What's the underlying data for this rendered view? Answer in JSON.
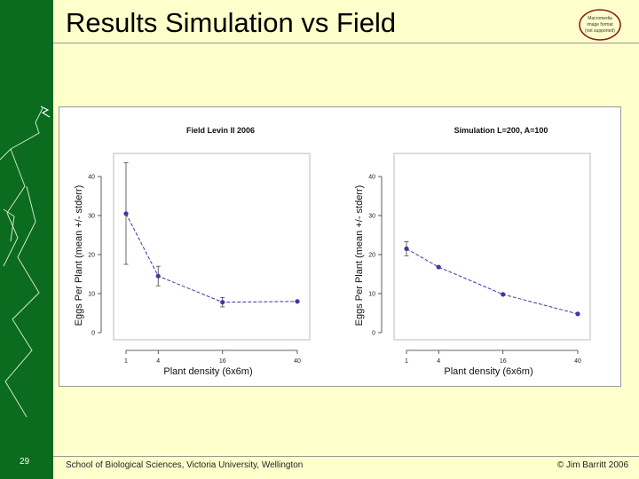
{
  "slide": {
    "title": "Results Simulation vs Field",
    "number": "29",
    "footer_left": "School of Biological Sciences, Victoria University, Wellington",
    "footer_right": "© Jim Barritt 2006",
    "logo_text": [
      "Macromedia",
      "image format",
      "(not supported)"
    ]
  },
  "colors": {
    "background": "#ffffcc",
    "sidebar": "#0b6b1e",
    "series": "#3a3aa0"
  },
  "chart_data": [
    {
      "type": "line",
      "title": "Field Levin II 2006",
      "xlabel": "Plant density (6x6m)",
      "ylabel": "Eggs Per Plant (mean +/- stderr)",
      "x": [
        1,
        4,
        16,
        40
      ],
      "x_ticks": [
        "1",
        "4",
        "16",
        "40"
      ],
      "y": [
        30.5,
        14.5,
        7.8,
        8.0
      ],
      "err": [
        13,
        2.5,
        1.2,
        0
      ],
      "y_ticks": [
        0,
        10,
        20,
        30,
        40
      ],
      "ylim": [
        0,
        45
      ],
      "xlim": [
        1,
        40
      ]
    },
    {
      "type": "line",
      "title": "Simulation L=200, A=100",
      "xlabel": "Plant density (6x6m)",
      "ylabel": "Eggs Per Plant (mean +/- stderr)",
      "x": [
        1,
        4,
        16,
        40
      ],
      "x_ticks": [
        "1",
        "4",
        "16",
        "40"
      ],
      "y": [
        21.5,
        16.8,
        9.8,
        4.8
      ],
      "err": [
        1.8,
        0,
        0,
        0
      ],
      "y_ticks": [
        0,
        10,
        20,
        30,
        40
      ],
      "ylim": [
        0,
        45
      ],
      "xlim": [
        1,
        40
      ]
    }
  ]
}
